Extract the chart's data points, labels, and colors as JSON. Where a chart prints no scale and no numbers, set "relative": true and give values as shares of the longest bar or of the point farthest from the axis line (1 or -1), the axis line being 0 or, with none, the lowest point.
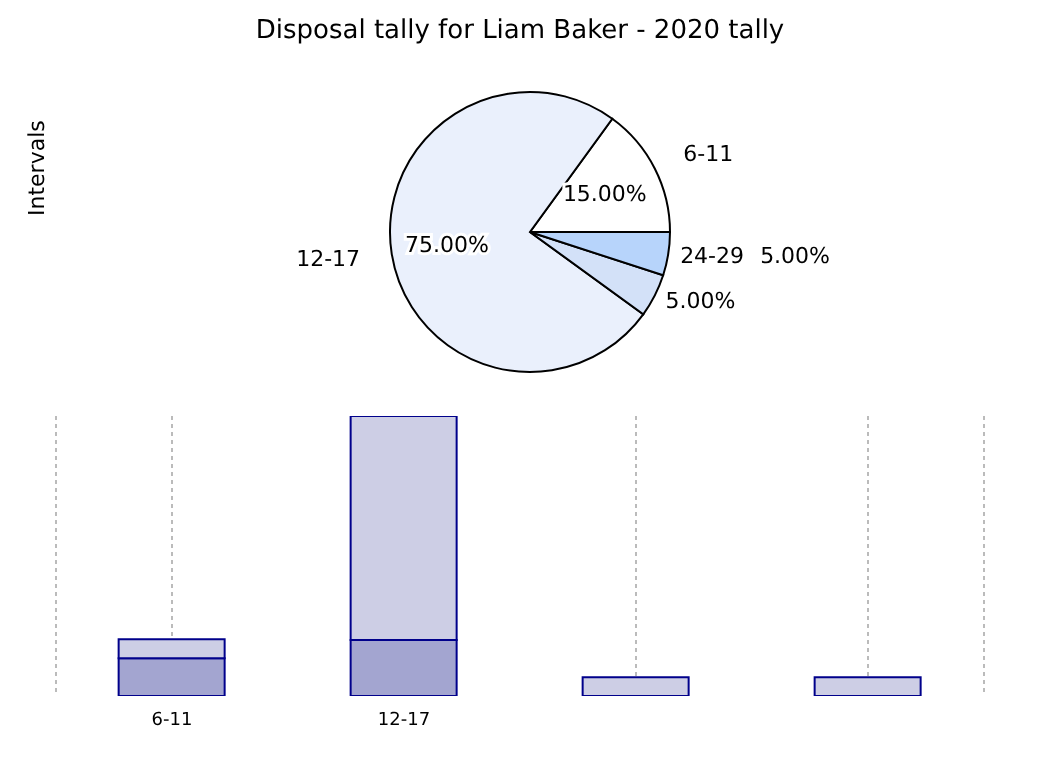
{
  "chart_data": [
    {
      "type": "pie",
      "title": "Disposal tally for Liam Baker - 2020 tally",
      "ylabel": "Intervals",
      "categories": [
        "6-11",
        "12-17",
        null,
        "24-29"
      ],
      "values": [
        15,
        75,
        5,
        5
      ],
      "value_labels": [
        "15.00%",
        "75.00%",
        "5.00%",
        "5.00%"
      ],
      "colors": [
        "#ffffff",
        "#eaf0fc",
        "#d3e1f8",
        "#b7d4fb"
      ]
    },
    {
      "type": "bar",
      "stacked": true,
      "relative": true,
      "grid": "x",
      "categories": [
        "6-11",
        "12-17",
        null,
        null
      ],
      "series": [
        {
          "color": "#a3a5d0",
          "values": [
            0.135,
            0.2,
            null,
            null
          ]
        },
        {
          "color": "#cdcee5",
          "values": [
            0.068,
            0.8,
            0.067,
            0.067
          ]
        }
      ]
    }
  ]
}
